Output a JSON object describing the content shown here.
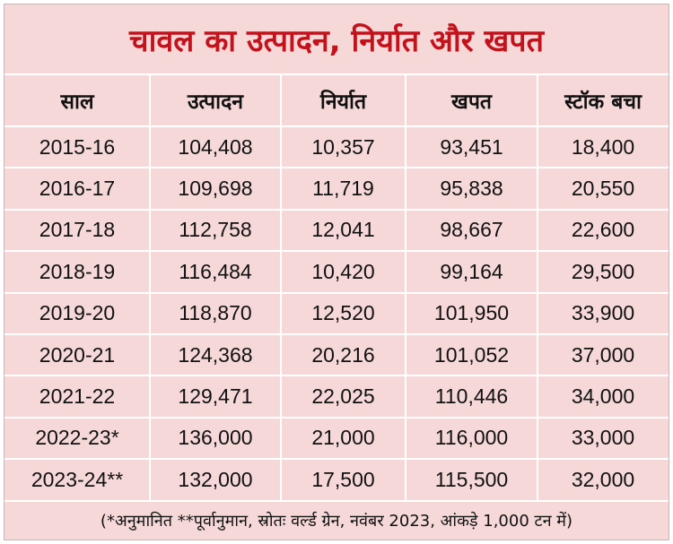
{
  "title": "चावल का उत्पादन, निर्यात और खपत",
  "chart_data": {
    "type": "table",
    "columns": [
      "साल",
      "उत्पादन",
      "निर्यात",
      "खपत",
      "स्टॉक बचा"
    ],
    "rows": [
      [
        "2015-16",
        "104,408",
        "10,357",
        "93,451",
        "18,400"
      ],
      [
        "2016-17",
        "109,698",
        "11,719",
        "95,838",
        "20,550"
      ],
      [
        "2017-18",
        "112,758",
        "12,041",
        "98,667",
        "22,600"
      ],
      [
        "2018-19",
        "116,484",
        "10,420",
        "99,164",
        "29,500"
      ],
      [
        "2019-20",
        "118,870",
        "12,520",
        "101,950",
        "33,900"
      ],
      [
        "2020-21",
        "124,368",
        "20,216",
        "101,052",
        "37,000"
      ],
      [
        "2021-22",
        "129,471",
        "22,025",
        "110,446",
        "34,000"
      ],
      [
        "2022-23*",
        "136,000",
        "21,000",
        "116,000",
        "33,000"
      ],
      [
        "2023-24**",
        "132,000",
        "17,500",
        "115,500",
        "32,000"
      ]
    ],
    "footnote": "(*अनुमानित **पूर्वानुमान, स्रोतः वर्ल्ड ग्रेन, नवंबर 2023, आंकड़े 1,000 टन में)"
  },
  "colors": {
    "background": "#f6d8d8",
    "title": "#c3121b",
    "grid": "#ffffff",
    "text": "#111111"
  }
}
